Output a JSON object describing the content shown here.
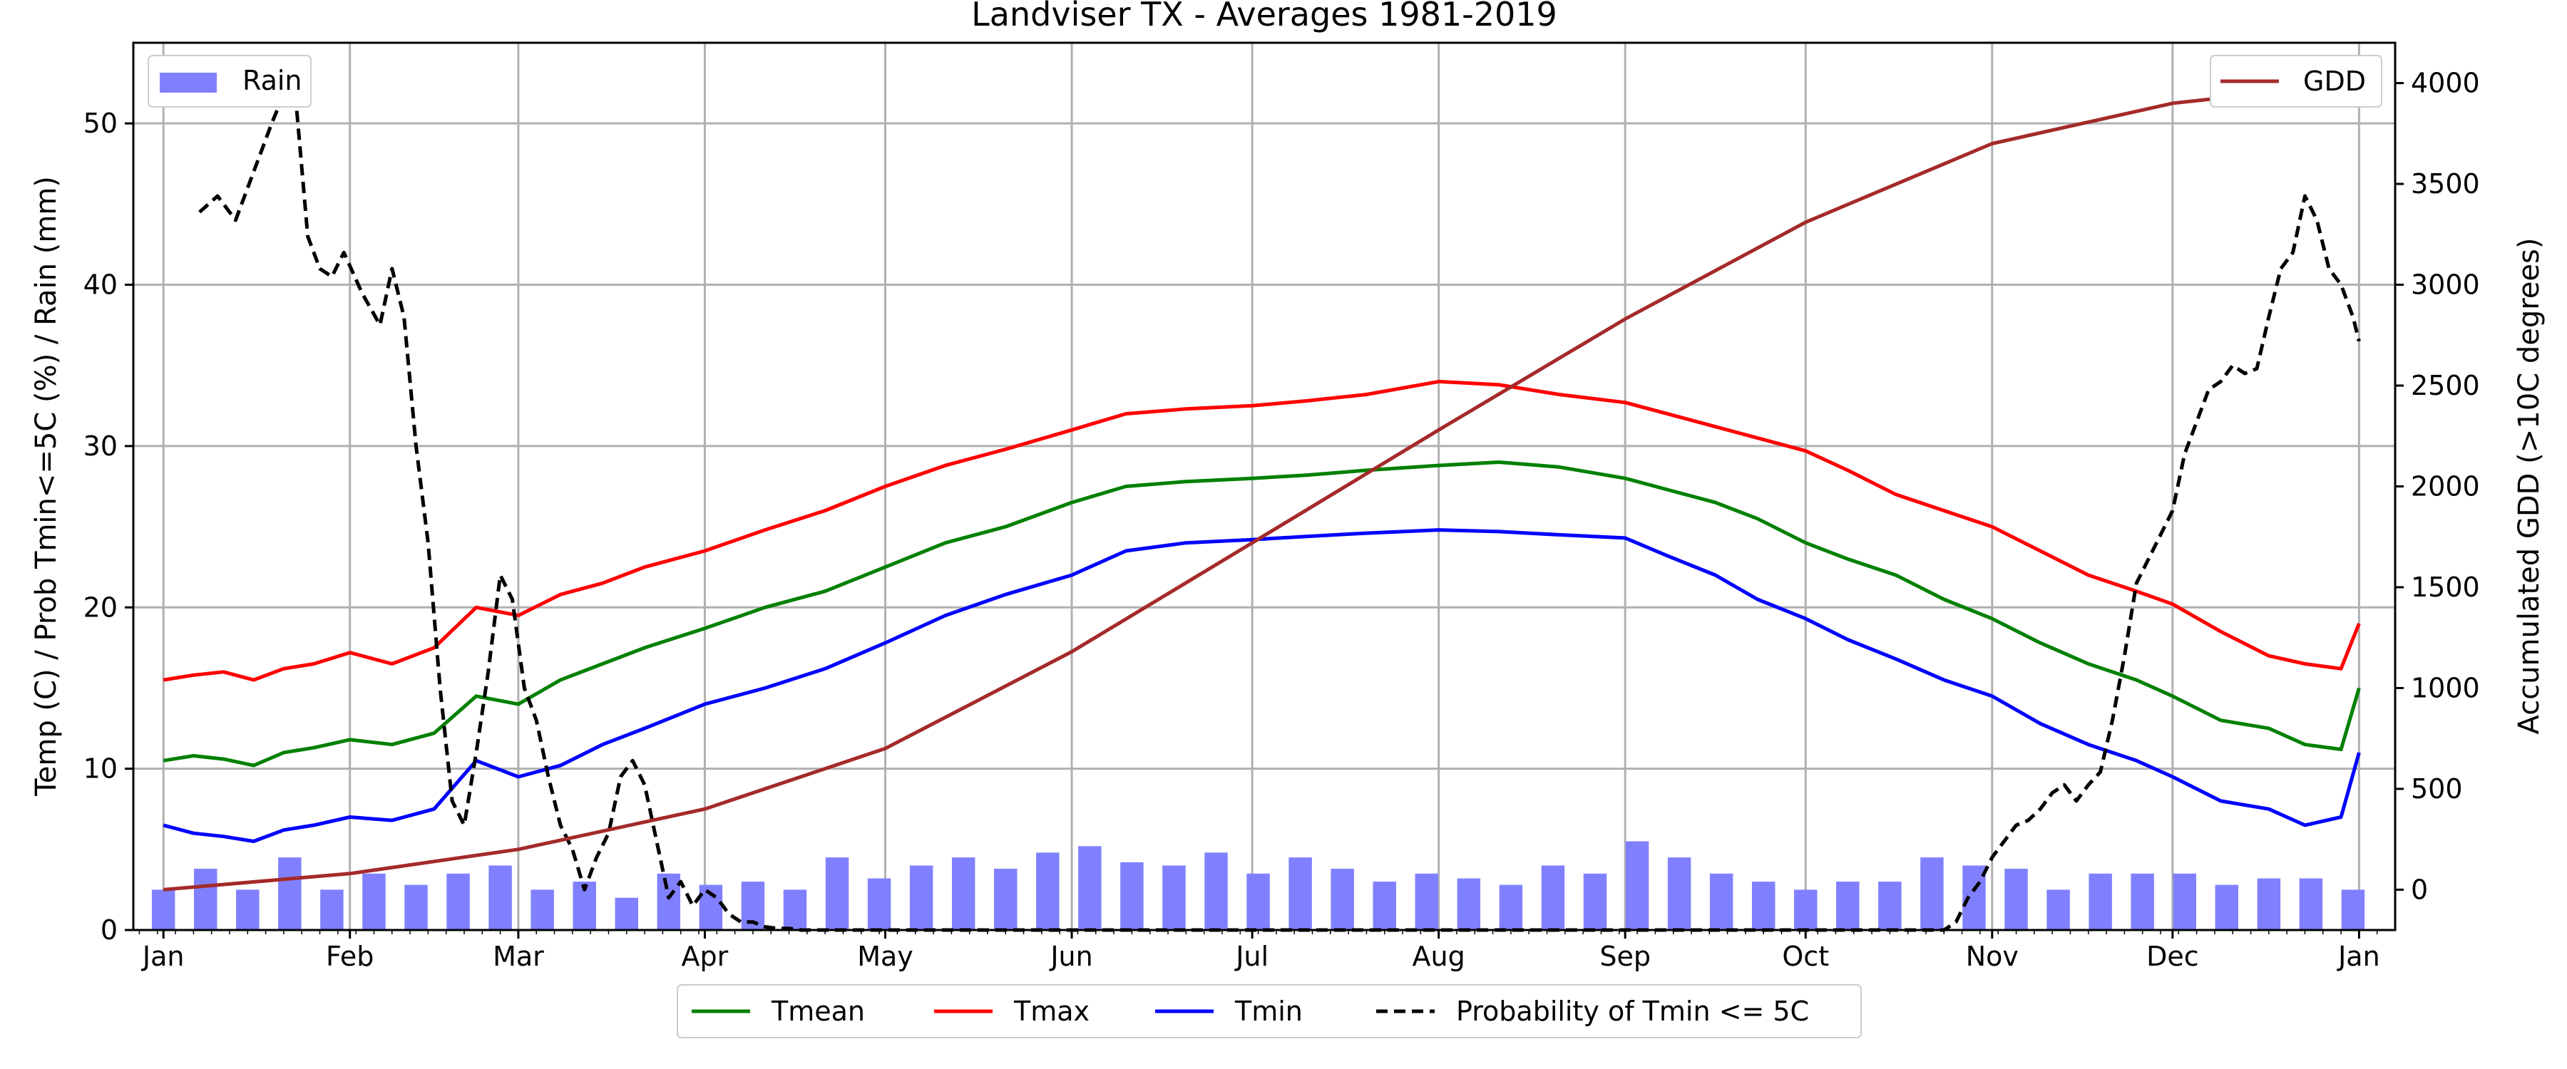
{
  "chart_data": {
    "type": "line",
    "title": "Landviser TX - Averages 1981-2019",
    "ylabel_left": "Temp (C) / Prob Tmin<=5C (%) / Rain (mm)",
    "ylabel_right": "Accumulated GDD (>10C degrees)",
    "ylim_left": [
      0,
      55
    ],
    "ylim_right": [
      -200,
      4200
    ],
    "xlim_day": [
      -5,
      371
    ],
    "y_ticks_left": [
      0,
      10,
      20,
      30,
      40,
      50
    ],
    "y_ticks_right": [
      0,
      500,
      1000,
      1500,
      2000,
      2500,
      3000,
      3500,
      4000
    ],
    "x_ticks": [
      {
        "label": "Jan",
        "day": 0
      },
      {
        "label": "Feb",
        "day": 31
      },
      {
        "label": "Mar",
        "day": 59
      },
      {
        "label": "Apr",
        "day": 90
      },
      {
        "label": "May",
        "day": 120
      },
      {
        "label": "Jun",
        "day": 151
      },
      {
        "label": "Jul",
        "day": 181
      },
      {
        "label": "Aug",
        "day": 212
      },
      {
        "label": "Sep",
        "day": 243
      },
      {
        "label": "Oct",
        "day": 273
      },
      {
        "label": "Nov",
        "day": 304
      },
      {
        "label": "Dec",
        "day": 334
      },
      {
        "label": "Jan",
        "day": 365
      }
    ],
    "grid": true,
    "legend_top_left": "top-left",
    "legend_top_right": "top-right",
    "legend_bottom": "below",
    "series": [
      {
        "name": "Tmean",
        "axis": "left",
        "color": "#008000",
        "style": "solid",
        "x": [
          0,
          5,
          10,
          15,
          20,
          25,
          31,
          38,
          45,
          52,
          59,
          66,
          73,
          80,
          90,
          100,
          110,
          120,
          130,
          140,
          151,
          160,
          170,
          181,
          190,
          200,
          212,
          222,
          232,
          243,
          250,
          258,
          265,
          273,
          280,
          288,
          296,
          304,
          312,
          320,
          328,
          334,
          342,
          350,
          356,
          362,
          365
        ],
        "y": [
          10.5,
          10.8,
          10.6,
          10.2,
          11.0,
          11.3,
          11.8,
          11.5,
          12.2,
          14.5,
          14.0,
          15.5,
          16.5,
          17.5,
          18.7,
          20.0,
          21.0,
          22.5,
          24.0,
          25.0,
          26.5,
          27.5,
          27.8,
          28.0,
          28.2,
          28.5,
          28.8,
          29.0,
          28.7,
          28.0,
          27.3,
          26.5,
          25.5,
          24.0,
          23.0,
          22.0,
          20.5,
          19.3,
          17.8,
          16.5,
          15.5,
          14.5,
          13.0,
          12.5,
          11.5,
          11.2,
          15.0
        ]
      },
      {
        "name": "Tmax",
        "axis": "left",
        "color": "#ff0000",
        "style": "solid",
        "x": [
          0,
          5,
          10,
          15,
          20,
          25,
          31,
          38,
          45,
          52,
          59,
          66,
          73,
          80,
          90,
          100,
          110,
          120,
          130,
          140,
          151,
          160,
          170,
          181,
          190,
          200,
          212,
          222,
          232,
          243,
          250,
          258,
          265,
          273,
          280,
          288,
          296,
          304,
          312,
          320,
          328,
          334,
          342,
          350,
          356,
          362,
          365
        ],
        "y": [
          15.5,
          15.8,
          16.0,
          15.5,
          16.2,
          16.5,
          17.2,
          16.5,
          17.5,
          20.0,
          19.5,
          20.8,
          21.5,
          22.5,
          23.5,
          24.8,
          26.0,
          27.5,
          28.8,
          29.8,
          31.0,
          32.0,
          32.3,
          32.5,
          32.8,
          33.2,
          34.0,
          33.8,
          33.2,
          32.7,
          32.0,
          31.2,
          30.5,
          29.7,
          28.5,
          27.0,
          26.0,
          25.0,
          23.5,
          22.0,
          21.0,
          20.2,
          18.5,
          17.0,
          16.5,
          16.2,
          19.0
        ]
      },
      {
        "name": "Tmin",
        "axis": "left",
        "color": "#0000ff",
        "style": "solid",
        "x": [
          0,
          5,
          10,
          15,
          20,
          25,
          31,
          38,
          45,
          52,
          59,
          66,
          73,
          80,
          90,
          100,
          110,
          120,
          130,
          140,
          151,
          160,
          170,
          181,
          190,
          200,
          212,
          222,
          232,
          243,
          250,
          258,
          265,
          273,
          280,
          288,
          296,
          304,
          312,
          320,
          328,
          334,
          342,
          350,
          356,
          362,
          365
        ],
        "y": [
          6.5,
          6.0,
          5.8,
          5.5,
          6.2,
          6.5,
          7.0,
          6.8,
          7.5,
          10.5,
          9.5,
          10.2,
          11.5,
          12.5,
          14.0,
          15.0,
          16.2,
          17.8,
          19.5,
          20.8,
          22.0,
          23.5,
          24.0,
          24.2,
          24.4,
          24.6,
          24.8,
          24.7,
          24.5,
          24.3,
          23.2,
          22.0,
          20.5,
          19.3,
          18.0,
          16.8,
          15.5,
          14.5,
          12.8,
          11.5,
          10.5,
          9.5,
          8.0,
          7.5,
          6.5,
          7.0,
          11.0
        ]
      },
      {
        "name": "Probability of Tmin <= 5C",
        "axis": "left",
        "color": "#000000",
        "style": "dashed",
        "x": [
          6,
          9,
          12,
          15,
          18,
          20,
          22,
          24,
          26,
          28,
          30,
          33,
          36,
          38,
          40,
          42,
          44,
          46,
          48,
          50,
          52,
          54,
          56,
          58,
          60,
          62,
          64,
          66,
          68,
          70,
          72,
          74,
          76,
          78,
          80,
          82,
          84,
          86,
          88,
          90,
          92,
          94,
          96,
          98,
          100,
          102,
          104,
          106,
          108,
          110,
          112,
          116,
          120,
          151,
          181,
          212,
          243,
          273,
          296,
          298,
          300,
          302,
          304,
          306,
          308,
          310,
          312,
          314,
          316,
          318,
          320,
          322,
          324,
          326,
          328,
          330,
          332,
          334,
          336,
          338,
          340,
          342,
          344,
          346,
          348,
          350,
          352,
          354,
          356,
          358,
          360,
          362,
          364,
          365
        ],
        "y": [
          44.5,
          45.5,
          44.0,
          47.0,
          50.0,
          51.8,
          51.5,
          43.0,
          41.0,
          40.5,
          42.0,
          39.5,
          37.5,
          41.0,
          38.0,
          30.0,
          24.0,
          15.0,
          8.0,
          6.5,
          11.0,
          16.0,
          22.0,
          20.5,
          15.0,
          13.0,
          9.5,
          6.5,
          5.0,
          2.5,
          4.5,
          6.0,
          9.5,
          10.5,
          9.0,
          5.5,
          2.0,
          3.0,
          1.5,
          2.5,
          2.0,
          1.0,
          0.5,
          0.5,
          0.2,
          0.1,
          0.1,
          0.0,
          0.0,
          0.0,
          0.0,
          0.0,
          0.0,
          0.0,
          0.0,
          0.0,
          0.0,
          0.0,
          0.0,
          0.5,
          2.0,
          3.0,
          4.5,
          5.5,
          6.5,
          6.8,
          7.5,
          8.5,
          9.0,
          8.0,
          9.0,
          9.8,
          13.0,
          17.0,
          21.5,
          23.0,
          24.5,
          26.0,
          29.5,
          31.5,
          33.5,
          34.0,
          35.0,
          34.5,
          34.8,
          38.0,
          41.0,
          42.0,
          45.5,
          44.0,
          41.0,
          40.0,
          38.0,
          36.5
        ]
      },
      {
        "name": "GDD",
        "axis": "right",
        "color": "#a52a2a",
        "style": "solid",
        "x": [
          0,
          31,
          59,
          90,
          120,
          151,
          181,
          212,
          243,
          273,
          304,
          334,
          365
        ],
        "y": [
          0,
          80,
          200,
          400,
          700,
          1180,
          1720,
          2280,
          2830,
          3310,
          3700,
          3900,
          4000
        ]
      },
      {
        "name": "Rain",
        "axis": "left",
        "color": "#8080ff",
        "type": "bar",
        "x": [
          0,
          7,
          14,
          21,
          28,
          35,
          42,
          49,
          56,
          63,
          70,
          77,
          84,
          91,
          98,
          105,
          112,
          119,
          126,
          133,
          140,
          147,
          154,
          161,
          168,
          175,
          182,
          189,
          196,
          203,
          210,
          217,
          224,
          231,
          238,
          245,
          252,
          259,
          266,
          273,
          280,
          287,
          294,
          301,
          308,
          315,
          322,
          329,
          336,
          343,
          350,
          357,
          364
        ],
        "y": [
          2.5,
          3.8,
          2.5,
          4.5,
          2.5,
          3.5,
          2.8,
          3.5,
          4.0,
          2.5,
          3.0,
          2.0,
          3.5,
          2.8,
          3.0,
          2.5,
          4.5,
          3.2,
          4.0,
          4.5,
          3.8,
          4.8,
          5.2,
          4.2,
          4.0,
          4.8,
          3.5,
          4.5,
          3.8,
          3.0,
          3.5,
          3.2,
          2.8,
          4.0,
          3.5,
          5.5,
          4.5,
          3.5,
          3.0,
          2.5,
          3.0,
          3.0,
          4.5,
          4.0,
          3.8,
          2.5,
          3.5,
          3.5,
          3.5,
          2.8,
          3.2,
          3.2,
          2.5
        ]
      }
    ]
  }
}
